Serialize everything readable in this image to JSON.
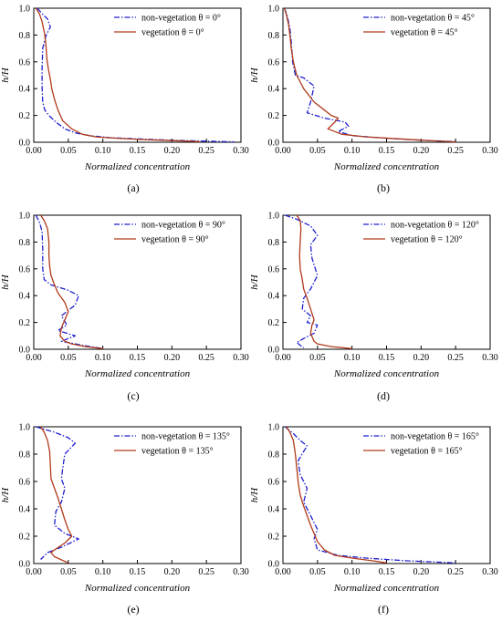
{
  "colors": {
    "non_vegetation": "#1f1fd0",
    "vegetation": "#b03a1a",
    "axes": "#000000"
  },
  "chart_data": [
    {
      "panel": "(a)",
      "type": "line",
      "xlabel": "Normalized concentration",
      "ylabel": "h/H",
      "xlim": [
        0,
        0.3
      ],
      "ylim": [
        0,
        1.0
      ],
      "xticks": [
        "0.00",
        "0.05",
        "0.10",
        "0.15",
        "0.20",
        "0.25",
        "0.30"
      ],
      "yticks": [
        "0.0",
        "0.2",
        "0.4",
        "0.6",
        "0.8",
        "1.0"
      ],
      "legend_position": "top-right",
      "series": [
        {
          "name": "non-vegetation θ = 0°",
          "style": "dashdot",
          "color": "#1f1fd0",
          "x": [
            0.005,
            0.012,
            0.02,
            0.024,
            0.018,
            0.013,
            0.012,
            0.012,
            0.013,
            0.016,
            0.022,
            0.032,
            0.045,
            0.06,
            0.08,
            0.11,
            0.15,
            0.2,
            0.25,
            0.29
          ],
          "y": [
            1.0,
            0.96,
            0.92,
            0.86,
            0.8,
            0.7,
            0.55,
            0.42,
            0.3,
            0.24,
            0.2,
            0.15,
            0.1,
            0.07,
            0.05,
            0.035,
            0.025,
            0.015,
            0.008,
            0.003
          ]
        },
        {
          "name": "vegetation θ = 0°",
          "style": "solid",
          "color": "#b03a1a",
          "x": [
            0.003,
            0.008,
            0.012,
            0.016,
            0.018,
            0.019,
            0.021,
            0.024,
            0.026,
            0.03,
            0.035,
            0.042,
            0.055,
            0.07,
            0.09,
            0.12,
            0.16,
            0.2,
            0.24
          ],
          "y": [
            1.0,
            0.96,
            0.9,
            0.8,
            0.7,
            0.62,
            0.55,
            0.47,
            0.4,
            0.32,
            0.24,
            0.16,
            0.1,
            0.06,
            0.04,
            0.03,
            0.02,
            0.012,
            0.005
          ]
        }
      ]
    },
    {
      "panel": "(b)",
      "type": "line",
      "xlabel": "Normalized concentration",
      "ylabel": "h/H",
      "xlim": [
        0,
        0.3
      ],
      "ylim": [
        0,
        1.0
      ],
      "xticks": [
        "0.00",
        "0.05",
        "0.10",
        "0.15",
        "0.20",
        "0.25",
        "0.30"
      ],
      "yticks": [
        "0.0",
        "0.2",
        "0.4",
        "0.6",
        "0.8",
        "1.0"
      ],
      "legend_position": "top-right",
      "series": [
        {
          "name": "non-vegetation θ = 45°",
          "style": "dashdot",
          "color": "#1f1fd0",
          "x": [
            0.002,
            0.006,
            0.01,
            0.012,
            0.014,
            0.018,
            0.03,
            0.045,
            0.04,
            0.035,
            0.06,
            0.09,
            0.095,
            0.08,
            0.1,
            0.15,
            0.2,
            0.25
          ],
          "y": [
            1.0,
            0.95,
            0.85,
            0.75,
            0.6,
            0.5,
            0.48,
            0.42,
            0.3,
            0.22,
            0.18,
            0.15,
            0.12,
            0.08,
            0.05,
            0.03,
            0.015,
            0.005
          ]
        },
        {
          "name": "vegetation θ = 45°",
          "style": "solid",
          "color": "#b03a1a",
          "x": [
            0.002,
            0.005,
            0.008,
            0.01,
            0.012,
            0.015,
            0.02,
            0.03,
            0.045,
            0.06,
            0.07,
            0.08,
            0.075,
            0.065,
            0.085,
            0.12,
            0.17,
            0.22,
            0.25
          ],
          "y": [
            1.0,
            0.95,
            0.88,
            0.8,
            0.7,
            0.6,
            0.5,
            0.4,
            0.3,
            0.24,
            0.2,
            0.18,
            0.15,
            0.1,
            0.06,
            0.04,
            0.025,
            0.01,
            0.003
          ]
        }
      ]
    },
    {
      "panel": "(c)",
      "type": "line",
      "xlabel": "Normalized concentration",
      "ylabel": "h/H",
      "xlim": [
        0,
        0.3
      ],
      "ylim": [
        0,
        1.0
      ],
      "xticks": [
        "0.00",
        "0.05",
        "0.10",
        "0.15",
        "0.20",
        "0.25",
        "0.30"
      ],
      "yticks": [
        "0.0",
        "0.2",
        "0.4",
        "0.6",
        "0.8",
        "1.0"
      ],
      "legend_position": "top-right",
      "series": [
        {
          "name": "non-vegetation θ = 90°",
          "style": "dashdot",
          "color": "#1f1fd0",
          "x": [
            0.003,
            0.008,
            0.012,
            0.013,
            0.013,
            0.015,
            0.025,
            0.05,
            0.065,
            0.06,
            0.04,
            0.048,
            0.035,
            0.06,
            0.04,
            0.07,
            0.1
          ],
          "y": [
            1.0,
            0.95,
            0.88,
            0.75,
            0.6,
            0.52,
            0.48,
            0.44,
            0.4,
            0.33,
            0.25,
            0.18,
            0.14,
            0.1,
            0.06,
            0.03,
            0.005
          ]
        },
        {
          "name": "vegetation θ = 90°",
          "style": "solid",
          "color": "#b03a1a",
          "x": [
            0.01,
            0.015,
            0.02,
            0.022,
            0.022,
            0.023,
            0.025,
            0.03,
            0.035,
            0.045,
            0.05,
            0.045,
            0.04,
            0.038,
            0.045,
            0.055,
            0.075,
            0.1
          ],
          "y": [
            1.0,
            0.96,
            0.9,
            0.8,
            0.7,
            0.62,
            0.55,
            0.48,
            0.42,
            0.35,
            0.28,
            0.22,
            0.16,
            0.1,
            0.06,
            0.04,
            0.02,
            0.005
          ]
        }
      ]
    },
    {
      "panel": "(d)",
      "type": "line",
      "xlabel": "Normalized concentration",
      "ylabel": "h/H",
      "xlim": [
        0,
        0.3
      ],
      "ylim": [
        0,
        1.0
      ],
      "xticks": [
        "0.00",
        "0.05",
        "0.10",
        "0.15",
        "0.20",
        "0.25",
        "0.30"
      ],
      "yticks": [
        "0.0",
        "0.2",
        "0.4",
        "0.6",
        "0.8",
        "1.0"
      ],
      "legend_position": "top-right",
      "series": [
        {
          "name": "non-vegetation θ = 120°",
          "style": "dashdot",
          "color": "#1f1fd0",
          "x": [
            0.003,
            0.02,
            0.04,
            0.05,
            0.04,
            0.042,
            0.05,
            0.04,
            0.03,
            0.028,
            0.04,
            0.035,
            0.05,
            0.045,
            0.03,
            0.02,
            0.03
          ],
          "y": [
            1.0,
            0.97,
            0.92,
            0.85,
            0.78,
            0.68,
            0.55,
            0.45,
            0.38,
            0.3,
            0.25,
            0.2,
            0.18,
            0.12,
            0.08,
            0.05,
            0.01
          ]
        },
        {
          "name": "vegetation θ = 120°",
          "style": "solid",
          "color": "#b03a1a",
          "x": [
            0.02,
            0.025,
            0.026,
            0.025,
            0.024,
            0.025,
            0.028,
            0.03,
            0.035,
            0.04,
            0.045,
            0.042,
            0.04,
            0.045,
            0.05,
            0.07,
            0.1
          ],
          "y": [
            1.0,
            0.96,
            0.9,
            0.8,
            0.7,
            0.6,
            0.52,
            0.45,
            0.38,
            0.3,
            0.22,
            0.18,
            0.12,
            0.06,
            0.04,
            0.02,
            0.005
          ]
        }
      ]
    },
    {
      "panel": "(e)",
      "type": "line",
      "xlabel": "Normalized concentration",
      "ylabel": "h/H",
      "xlim": [
        0,
        0.3
      ],
      "ylim": [
        0,
        1.0
      ],
      "xticks": [
        "0.00",
        "0.05",
        "0.10",
        "0.15",
        "0.20",
        "0.25",
        "0.30"
      ],
      "yticks": [
        "0.0",
        "0.2",
        "0.4",
        "0.6",
        "0.8",
        "1.0"
      ],
      "legend_position": "top-right",
      "series": [
        {
          "name": "non-vegetation θ = 135°",
          "style": "dashdot",
          "color": "#1f1fd0",
          "x": [
            0.003,
            0.03,
            0.05,
            0.06,
            0.045,
            0.042,
            0.04,
            0.045,
            0.04,
            0.032,
            0.03,
            0.045,
            0.065,
            0.04,
            0.02,
            0.01
          ],
          "y": [
            1.0,
            0.96,
            0.92,
            0.88,
            0.8,
            0.7,
            0.62,
            0.55,
            0.45,
            0.38,
            0.28,
            0.22,
            0.18,
            0.12,
            0.08,
            0.03
          ]
        },
        {
          "name": "vegetation θ = 135°",
          "style": "solid",
          "color": "#b03a1a",
          "x": [
            0.01,
            0.015,
            0.02,
            0.023,
            0.024,
            0.025,
            0.03,
            0.035,
            0.04,
            0.045,
            0.05,
            0.055,
            0.045,
            0.03,
            0.025,
            0.03,
            0.05
          ],
          "y": [
            1.0,
            0.96,
            0.9,
            0.82,
            0.72,
            0.62,
            0.55,
            0.48,
            0.4,
            0.32,
            0.25,
            0.2,
            0.15,
            0.1,
            0.08,
            0.05,
            0.005
          ]
        }
      ]
    },
    {
      "panel": "(f)",
      "type": "line",
      "xlabel": "Normalized concentration",
      "ylabel": "h/H",
      "xlim": [
        0,
        0.3
      ],
      "ylim": [
        0,
        1.0
      ],
      "xticks": [
        "0.00",
        "0.05",
        "0.10",
        "0.15",
        "0.20",
        "0.25",
        "0.30"
      ],
      "yticks": [
        "0.0",
        "0.2",
        "0.4",
        "0.6",
        "0.8",
        "1.0"
      ],
      "legend_position": "top-right",
      "series": [
        {
          "name": "non-vegetation θ = 165°",
          "style": "dashdot",
          "color": "#1f1fd0",
          "x": [
            0.003,
            0.015,
            0.025,
            0.035,
            0.03,
            0.022,
            0.025,
            0.035,
            0.03,
            0.04,
            0.05,
            0.045,
            0.05,
            0.08,
            0.12,
            0.18,
            0.25
          ],
          "y": [
            1.0,
            0.95,
            0.9,
            0.86,
            0.82,
            0.75,
            0.65,
            0.55,
            0.45,
            0.35,
            0.25,
            0.18,
            0.1,
            0.06,
            0.04,
            0.02,
            0.005
          ]
        },
        {
          "name": "vegetation θ = 165°",
          "style": "solid",
          "color": "#b03a1a",
          "x": [
            0.005,
            0.01,
            0.015,
            0.018,
            0.02,
            0.022,
            0.025,
            0.03,
            0.035,
            0.04,
            0.045,
            0.05,
            0.06,
            0.075,
            0.1,
            0.13,
            0.15
          ],
          "y": [
            1.0,
            0.96,
            0.9,
            0.8,
            0.7,
            0.6,
            0.5,
            0.42,
            0.35,
            0.28,
            0.22,
            0.16,
            0.1,
            0.06,
            0.04,
            0.02,
            0.005
          ]
        }
      ]
    }
  ]
}
